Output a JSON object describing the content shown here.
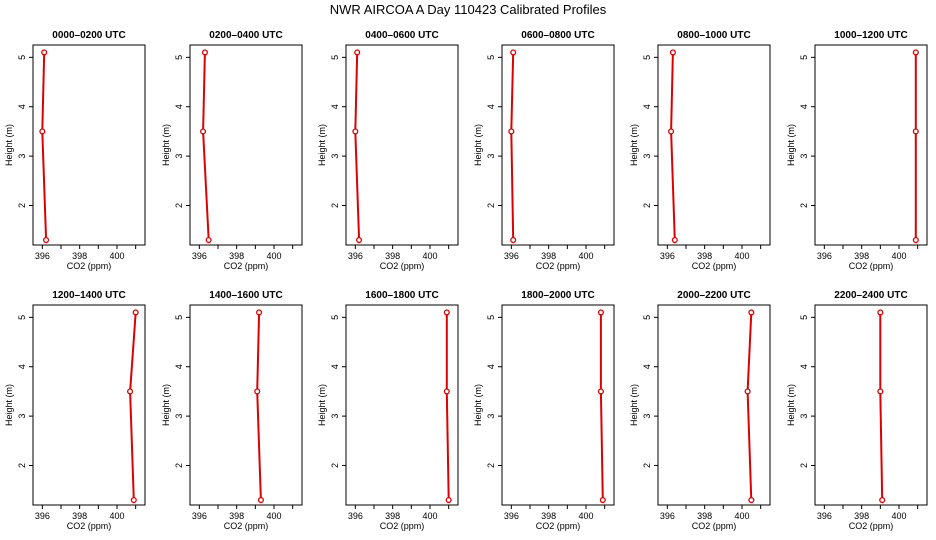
{
  "figure": {
    "title": "NWR AIRCOA A  Day 110423  Calibrated Profiles"
  },
  "chart_data": [
    {
      "type": "line",
      "title": "0000–0200 UTC",
      "xlabel": "CO2 (ppm)",
      "ylabel": "Height (m)",
      "xlim": [
        395.5,
        401.5
      ],
      "ylim": [
        1.2,
        5.25
      ],
      "x_ticks": [
        "396",
        "398",
        "400"
      ],
      "y_ticks": [
        "2",
        "3",
        "4",
        "5"
      ],
      "series": [
        {
          "x": [
            396.1,
            396.0,
            396.2
          ],
          "y": [
            5.1,
            3.5,
            1.3
          ]
        }
      ]
    },
    {
      "type": "line",
      "title": "0200–0400 UTC",
      "xlabel": "CO2 (ppm)",
      "ylabel": "Height (m)",
      "xlim": [
        395.5,
        401.5
      ],
      "ylim": [
        1.2,
        5.25
      ],
      "x_ticks": [
        "396",
        "398",
        "400"
      ],
      "y_ticks": [
        "2",
        "3",
        "4",
        "5"
      ],
      "series": [
        {
          "x": [
            396.3,
            396.2,
            396.5
          ],
          "y": [
            5.1,
            3.5,
            1.3
          ]
        }
      ]
    },
    {
      "type": "line",
      "title": "0400–0600 UTC",
      "xlabel": "CO2 (ppm)",
      "ylabel": "Height (m)",
      "xlim": [
        395.5,
        401.5
      ],
      "ylim": [
        1.2,
        5.25
      ],
      "x_ticks": [
        "396",
        "398",
        "400"
      ],
      "y_ticks": [
        "2",
        "3",
        "4",
        "5"
      ],
      "series": [
        {
          "x": [
            396.1,
            396.0,
            396.2
          ],
          "y": [
            5.1,
            3.5,
            1.3
          ]
        }
      ]
    },
    {
      "type": "line",
      "title": "0600–0800 UTC",
      "xlabel": "CO2 (ppm)",
      "ylabel": "Height (m)",
      "xlim": [
        395.5,
        401.5
      ],
      "ylim": [
        1.2,
        5.25
      ],
      "x_ticks": [
        "396",
        "398",
        "400"
      ],
      "y_ticks": [
        "2",
        "3",
        "4",
        "5"
      ],
      "series": [
        {
          "x": [
            396.1,
            396.0,
            396.1
          ],
          "y": [
            5.1,
            3.5,
            1.3
          ]
        }
      ]
    },
    {
      "type": "line",
      "title": "0800–1000 UTC",
      "xlabel": "CO2 (ppm)",
      "ylabel": "Height (m)",
      "xlim": [
        395.5,
        401.5
      ],
      "ylim": [
        1.2,
        5.25
      ],
      "x_ticks": [
        "396",
        "398",
        "400"
      ],
      "y_ticks": [
        "2",
        "3",
        "4",
        "5"
      ],
      "series": [
        {
          "x": [
            396.3,
            396.2,
            396.4
          ],
          "y": [
            5.1,
            3.5,
            1.3
          ]
        }
      ]
    },
    {
      "type": "line",
      "title": "1000–1200 UTC",
      "xlabel": "CO2 (ppm)",
      "ylabel": "Height (m)",
      "xlim": [
        395.5,
        401.5
      ],
      "ylim": [
        1.2,
        5.25
      ],
      "x_ticks": [
        "396",
        "398",
        "400"
      ],
      "y_ticks": [
        "2",
        "3",
        "4",
        "5"
      ],
      "series": [
        {
          "x": [
            400.9,
            400.9,
            400.9
          ],
          "y": [
            5.1,
            3.5,
            1.3
          ]
        }
      ]
    },
    {
      "type": "line",
      "title": "1200–1400 UTC",
      "xlabel": "CO2 (ppm)",
      "ylabel": "Height (m)",
      "xlim": [
        395.5,
        401.5
      ],
      "ylim": [
        1.2,
        5.25
      ],
      "x_ticks": [
        "396",
        "398",
        "400"
      ],
      "y_ticks": [
        "2",
        "3",
        "4",
        "5"
      ],
      "series": [
        {
          "x": [
            401.0,
            400.7,
            400.9
          ],
          "y": [
            5.1,
            3.5,
            1.3
          ]
        }
      ]
    },
    {
      "type": "line",
      "title": "1400–1600 UTC",
      "xlabel": "CO2 (ppm)",
      "ylabel": "Height (m)",
      "xlim": [
        395.5,
        401.5
      ],
      "ylim": [
        1.2,
        5.25
      ],
      "x_ticks": [
        "396",
        "398",
        "400"
      ],
      "y_ticks": [
        "2",
        "3",
        "4",
        "5"
      ],
      "series": [
        {
          "x": [
            399.2,
            399.1,
            399.3
          ],
          "y": [
            5.1,
            3.5,
            1.3
          ]
        }
      ]
    },
    {
      "type": "line",
      "title": "1600–1800 UTC",
      "xlabel": "CO2 (ppm)",
      "ylabel": "Height (m)",
      "xlim": [
        395.5,
        401.5
      ],
      "ylim": [
        1.2,
        5.25
      ],
      "x_ticks": [
        "396",
        "398",
        "400"
      ],
      "y_ticks": [
        "2",
        "3",
        "4",
        "5"
      ],
      "series": [
        {
          "x": [
            400.9,
            400.9,
            401.0
          ],
          "y": [
            5.1,
            3.5,
            1.3
          ]
        }
      ]
    },
    {
      "type": "line",
      "title": "1800–2000 UTC",
      "xlabel": "CO2 (ppm)",
      "ylabel": "Height (m)",
      "xlim": [
        395.5,
        401.5
      ],
      "ylim": [
        1.2,
        5.25
      ],
      "x_ticks": [
        "396",
        "398",
        "400"
      ],
      "y_ticks": [
        "2",
        "3",
        "4",
        "5"
      ],
      "series": [
        {
          "x": [
            400.8,
            400.8,
            400.9
          ],
          "y": [
            5.1,
            3.5,
            1.3
          ]
        }
      ]
    },
    {
      "type": "line",
      "title": "2000–2200 UTC",
      "xlabel": "CO2 (ppm)",
      "ylabel": "Height (m)",
      "xlim": [
        395.5,
        401.5
      ],
      "ylim": [
        1.2,
        5.25
      ],
      "x_ticks": [
        "396",
        "398",
        "400"
      ],
      "y_ticks": [
        "2",
        "3",
        "4",
        "5"
      ],
      "series": [
        {
          "x": [
            400.5,
            400.3,
            400.5
          ],
          "y": [
            5.1,
            3.5,
            1.3
          ]
        }
      ]
    },
    {
      "type": "line",
      "title": "2200–2400 UTC",
      "xlabel": "CO2 (ppm)",
      "ylabel": "Height (m)",
      "xlim": [
        395.5,
        401.5
      ],
      "ylim": [
        1.2,
        5.25
      ],
      "x_ticks": [
        "396",
        "398",
        "400"
      ],
      "y_ticks": [
        "2",
        "3",
        "4",
        "5"
      ],
      "series": [
        {
          "x": [
            399.0,
            399.0,
            399.1
          ],
          "y": [
            5.1,
            3.5,
            1.3
          ]
        }
      ]
    }
  ],
  "colors": {
    "series": "#dd0000",
    "axis": "#000000"
  }
}
